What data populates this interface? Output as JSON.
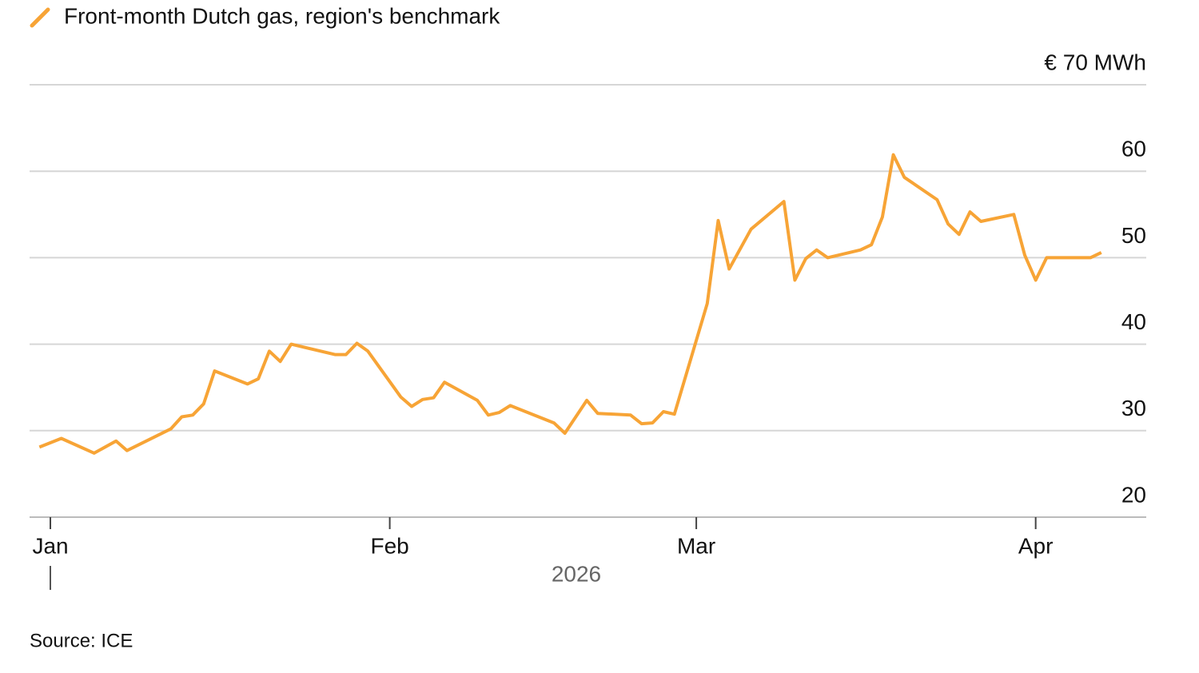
{
  "chart_data": {
    "type": "line",
    "series": [
      {
        "name": "Front-month Dutch gas, region's benchmark",
        "color": "#f7a436",
        "x": [
          -1,
          1,
          4,
          6,
          7,
          11,
          12,
          13,
          14,
          15,
          18,
          19,
          20,
          21,
          22,
          26,
          27,
          28,
          29,
          32,
          33,
          34,
          35,
          36,
          39,
          40,
          41,
          42,
          46,
          47,
          49,
          50,
          53,
          54,
          55,
          56,
          57,
          60,
          61,
          62,
          64,
          67,
          68,
          69,
          70,
          71,
          74,
          75,
          76,
          77,
          78,
          81,
          82,
          83,
          84,
          85,
          88,
          89,
          90,
          91,
          95,
          96
        ],
        "values": [
          28.1,
          29.1,
          27.4,
          28.8,
          27.7,
          30.2,
          31.6,
          31.8,
          33.1,
          36.9,
          35.4,
          36.0,
          39.2,
          38.0,
          40.0,
          38.8,
          38.8,
          40.1,
          39.2,
          33.9,
          32.8,
          33.6,
          33.8,
          35.6,
          33.5,
          31.8,
          32.1,
          32.9,
          30.9,
          29.7,
          33.5,
          32.0,
          31.8,
          30.8,
          30.9,
          32.2,
          31.9,
          44.7,
          54.3,
          48.7,
          53.3,
          56.5,
          47.4,
          49.9,
          50.9,
          50.0,
          50.9,
          51.5,
          54.7,
          61.9,
          59.3,
          56.7,
          53.9,
          52.7,
          55.3,
          54.2,
          55.0,
          50.3,
          47.4,
          50.0,
          50.0,
          50.6
        ]
      }
    ],
    "xlim": [
      -1.9,
      100.1
    ],
    "xticks": [
      {
        "value": 0,
        "label": "Jan"
      },
      {
        "value": 31,
        "label": "Feb"
      },
      {
        "value": 59,
        "label": "Mar"
      },
      {
        "value": 90,
        "label": "Apr"
      }
    ],
    "xlabel": "2026",
    "ylim": [
      20,
      70
    ],
    "yticks": [
      20,
      30,
      40,
      50,
      60,
      {
        "value": 70,
        "label": "€ 70 MWh"
      }
    ],
    "grid": true,
    "source": "Source: ICE"
  }
}
